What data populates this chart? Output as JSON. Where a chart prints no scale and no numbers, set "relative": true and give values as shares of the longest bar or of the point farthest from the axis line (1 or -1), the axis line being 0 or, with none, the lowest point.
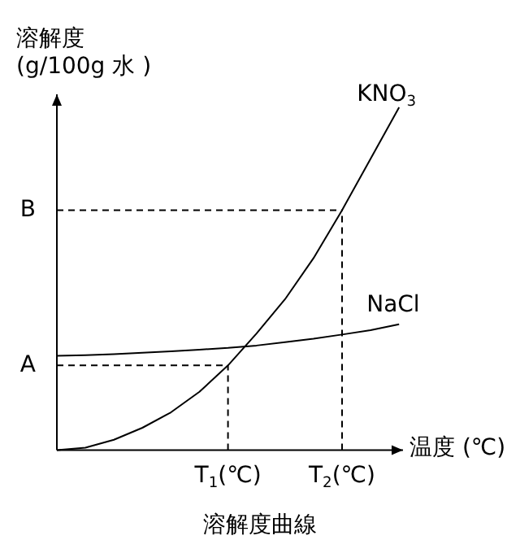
{
  "chart_data": {
    "type": "line",
    "title": "溶解度曲線",
    "xlabel": "温度 (℃)",
    "ylabel": "溶解度\n(g/100g 水 )",
    "relative": true,
    "legend": false,
    "marker": "none",
    "categories": [
      null,
      null,
      null,
      null,
      null,
      null,
      "T$_{1}$(℃)",
      null,
      null,
      null,
      "T$_{2}$(℃)",
      null,
      null
    ],
    "series": [
      {
        "name": "KNO$_{3}$",
        "color": "#000000",
        "values": [
          0,
          0.007,
          0.03,
          0.065,
          0.11,
          0.17,
          0.247,
          0.34,
          0.44,
          0.56,
          0.7,
          0.85,
          1
        ]
      },
      {
        "name": "NaCl",
        "color": "#000000",
        "values": [
          0.275,
          0.277,
          0.28,
          0.284,
          0.288,
          0.293,
          0.298,
          0.305,
          0.315,
          0.325,
          0.337,
          0.35,
          0.367
        ]
      }
    ],
    "ref_lines": [
      {
        "axis": "y",
        "value": 0.247,
        "label": "A",
        "line_style": "dashed"
      },
      {
        "axis": "y",
        "value": 0.7,
        "label": "B",
        "line_style": "dashed"
      },
      {
        "axis": "x",
        "value": "T$_{1}$(℃)",
        "line_style": "dashed"
      },
      {
        "axis": "x",
        "value": "T$_{2}$(℃)",
        "line_style": "dashed"
      }
    ]
  }
}
